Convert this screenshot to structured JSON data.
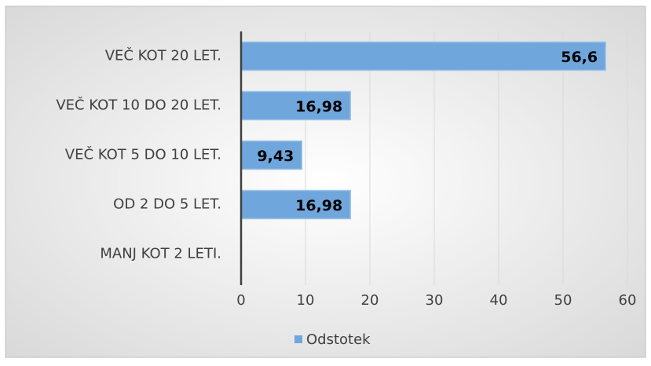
{
  "chart_data": {
    "type": "bar",
    "orientation": "horizontal",
    "categories": [
      "VEČ KOT 20 LET.",
      "VEČ KOT 10 DO 20 LET.",
      "VEČ KOT 5 DO 10 LET.",
      "OD 2 DO 5 LET.",
      "MANJ KOT 2 LETI."
    ],
    "series": [
      {
        "name": "Odstotek",
        "color": "#6fa6dc",
        "values": [
          56.6,
          16.98,
          9.43,
          16.98,
          0
        ],
        "value_labels": [
          "56,6",
          "16,98",
          "9,43",
          "16,98",
          null
        ]
      }
    ],
    "xlim": [
      0,
      60
    ],
    "xticks": [
      0,
      10,
      20,
      30,
      40,
      50,
      60
    ],
    "grid": true,
    "legend": "bottom"
  }
}
